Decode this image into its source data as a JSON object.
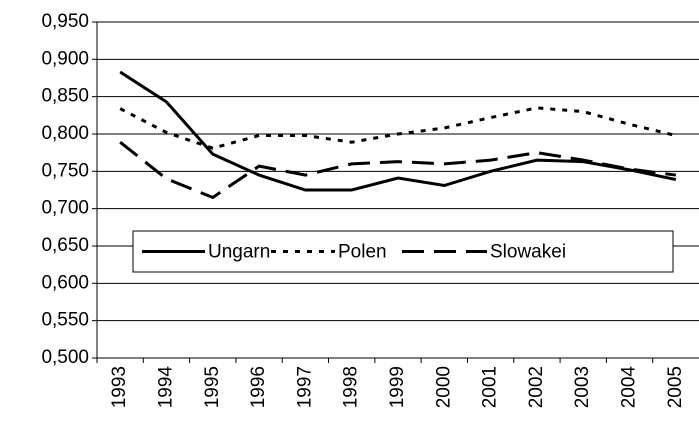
{
  "chart_data": {
    "type": "line",
    "categories": [
      "1993",
      "1994",
      "1995",
      "1996",
      "1997",
      "1998",
      "1999",
      "2000",
      "2001",
      "2002",
      "2003",
      "2004",
      "2005"
    ],
    "series": [
      {
        "name": "Ungarn",
        "color": "#000000",
        "style": "solid",
        "values": [
          0.883,
          0.843,
          0.773,
          0.745,
          0.725,
          0.725,
          0.741,
          0.731,
          0.75,
          0.765,
          0.763,
          0.752,
          0.739
        ]
      },
      {
        "name": "Polen",
        "color": "#000000",
        "style": "dotted",
        "values": [
          0.834,
          0.802,
          0.781,
          0.798,
          0.798,
          0.789,
          0.8,
          0.808,
          0.822,
          0.835,
          0.83,
          0.813,
          0.798
        ]
      },
      {
        "name": "Slowakei",
        "color": "#000000",
        "style": "dashed",
        "values": [
          0.789,
          0.74,
          0.715,
          0.757,
          0.745,
          0.76,
          0.763,
          0.76,
          0.765,
          0.775,
          0.765,
          0.753,
          0.745
        ]
      }
    ],
    "ylim": [
      0.5,
      0.95
    ],
    "yticks": [
      {
        "value": 0.5,
        "label": "0,500"
      },
      {
        "value": 0.55,
        "label": "0,550"
      },
      {
        "value": 0.6,
        "label": "0,600"
      },
      {
        "value": 0.65,
        "label": "0,650"
      },
      {
        "value": 0.7,
        "label": "0,700"
      },
      {
        "value": 0.75,
        "label": "0,750"
      },
      {
        "value": 0.8,
        "label": "0,800"
      },
      {
        "value": 0.85,
        "label": "0,850"
      },
      {
        "value": 0.9,
        "label": "0,900"
      },
      {
        "value": 0.95,
        "label": "0,950"
      }
    ],
    "grid": true,
    "legend": "inside"
  }
}
